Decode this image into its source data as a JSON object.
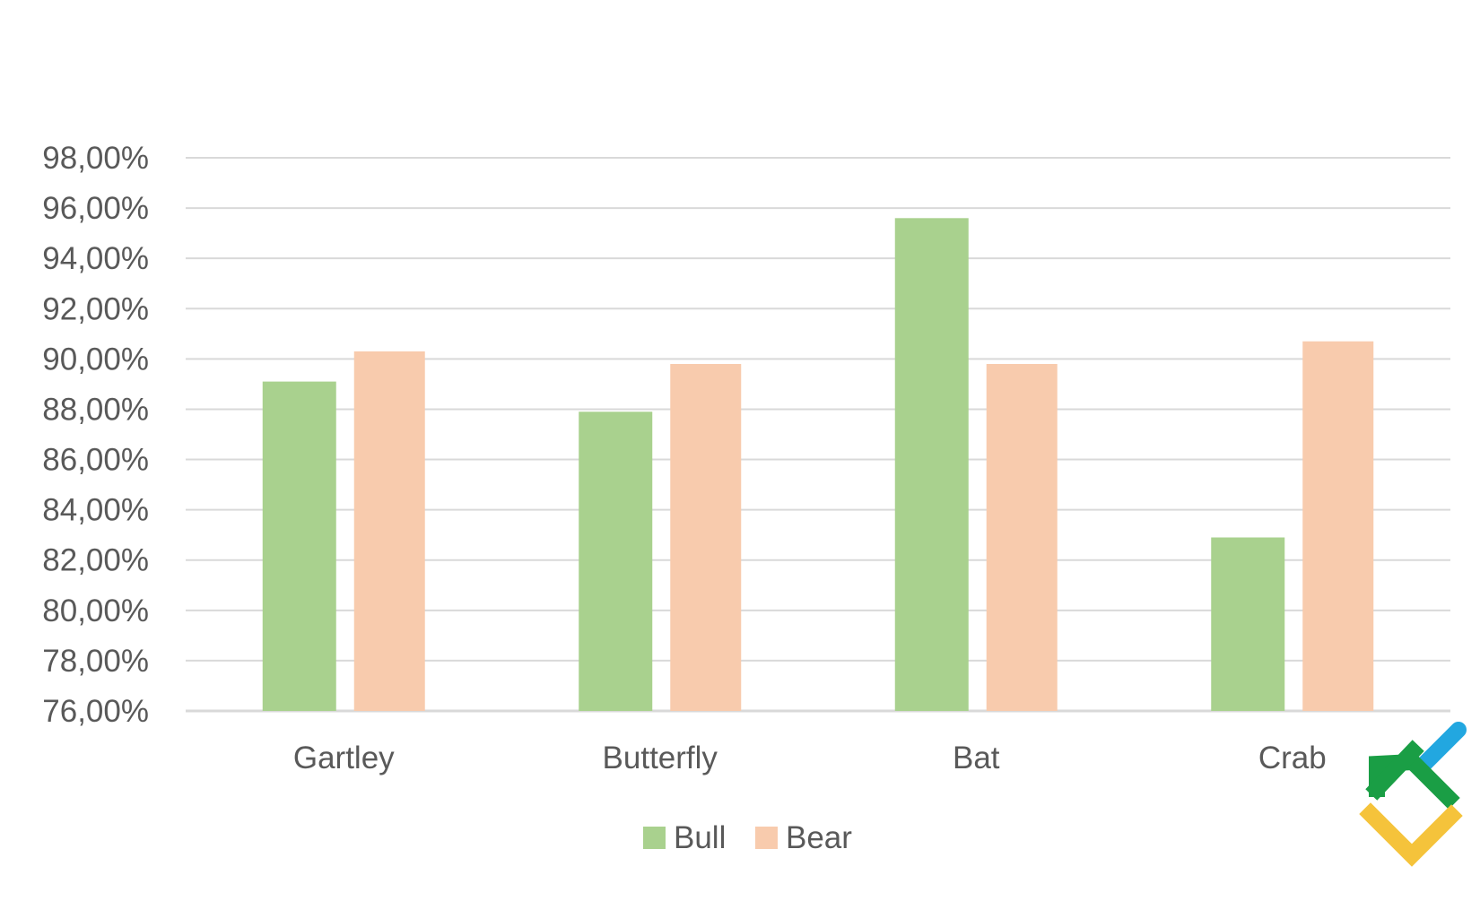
{
  "chart_data": {
    "type": "bar",
    "categories": [
      "Gartley",
      "Butterfly",
      "Bat",
      "Crab"
    ],
    "series": [
      {
        "name": "Bull",
        "values": [
          89.1,
          87.9,
          95.6,
          82.9
        ]
      },
      {
        "name": "Bear",
        "values": [
          90.3,
          89.8,
          89.8,
          90.7
        ]
      }
    ],
    "ylim": [
      76,
      98
    ],
    "ytick_step": 2,
    "ytick_labels": [
      "76,00%",
      "78,00%",
      "80,00%",
      "82,00%",
      "84,00%",
      "86,00%",
      "88,00%",
      "90,00%",
      "92,00%",
      "94,00%",
      "96,00%",
      "98,00%"
    ],
    "grid": true,
    "legend_position": "bottom"
  },
  "colors": {
    "bull": "#a9d18e",
    "bear": "#f8cbad",
    "grid": "#d9d9d9",
    "text": "#595959",
    "logo_green": "#1a9e45",
    "logo_yellow": "#f5c33b",
    "logo_blue": "#22a7e0"
  },
  "logo": {
    "icon": "brand-logo-icon"
  }
}
